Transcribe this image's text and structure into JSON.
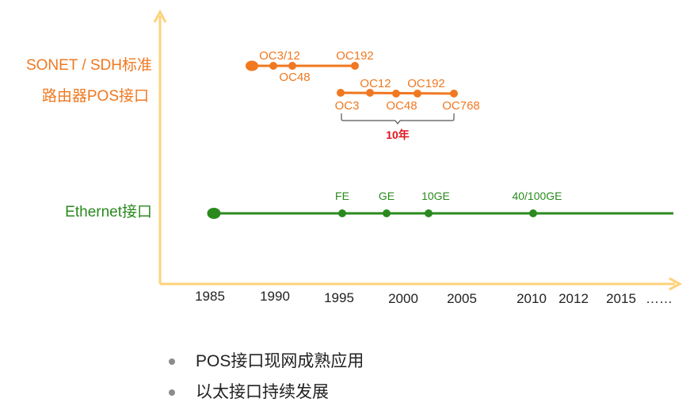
{
  "rows": {
    "sonet_line1": "SONET / SDH标准",
    "sonet_line2": "路由器POS接口",
    "ethernet": "Ethernet接口"
  },
  "years": [
    "1985",
    "1990",
    "1995",
    "2000",
    "2005",
    "2010",
    "2012",
    "2015",
    "……"
  ],
  "pos_track1_labels": {
    "oc3_12": "OC3/12",
    "oc48": "OC48",
    "oc192": "OC192"
  },
  "pos_track2_labels": {
    "oc3": "OC3",
    "oc12": "OC12",
    "oc48": "OC48",
    "oc192": "OC192",
    "oc768": "OC768"
  },
  "span_label": "10年",
  "ethernet_labels": {
    "fe": "FE",
    "ge": "GE",
    "ge10": "10GE",
    "ge40_100": "40/100GE"
  },
  "bullets": [
    "POS接口现网成熟应用",
    "以太接口持续发展"
  ],
  "colors": {
    "axis": "#fdd27a",
    "orange": "#f07820",
    "green": "#2a8a1e",
    "red": "#e0141e",
    "bullet": "#8c8c8c"
  }
}
